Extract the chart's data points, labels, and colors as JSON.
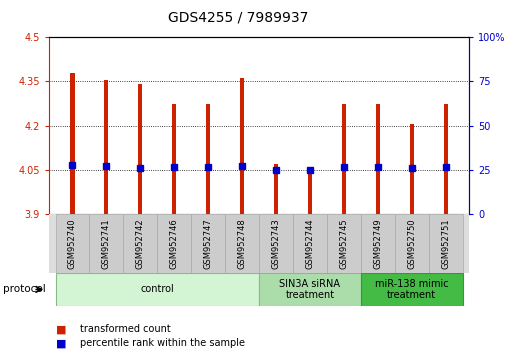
{
  "title": "GDS4255 / 7989937",
  "samples": [
    "GSM952740",
    "GSM952741",
    "GSM952742",
    "GSM952746",
    "GSM952747",
    "GSM952748",
    "GSM952743",
    "GSM952744",
    "GSM952745",
    "GSM952749",
    "GSM952750",
    "GSM952751"
  ],
  "bar_tops": [
    4.38,
    4.355,
    4.34,
    4.275,
    4.275,
    4.36,
    4.07,
    4.06,
    4.275,
    4.275,
    4.205,
    4.275
  ],
  "bar_bottom": 3.9,
  "percentile_left_values": [
    4.067,
    4.062,
    4.057,
    4.06,
    4.06,
    4.062,
    4.051,
    4.051,
    4.06,
    4.06,
    4.057,
    4.06
  ],
  "ylim_left": [
    3.9,
    4.5
  ],
  "ylim_right": [
    0,
    100
  ],
  "yticks_left": [
    3.9,
    4.05,
    4.2,
    4.35,
    4.5
  ],
  "ytick_labels_left": [
    "3.9",
    "4.05",
    "4.2",
    "4.35",
    "4.5"
  ],
  "yticks_right": [
    0,
    25,
    50,
    75,
    100
  ],
  "ytick_labels_right": [
    "0",
    "25",
    "50",
    "75",
    "100%"
  ],
  "bar_color": "#cc2200",
  "dot_color": "#0000cc",
  "grid_dotted_at": [
    4.05,
    4.2,
    4.35
  ],
  "protocol_groups": [
    {
      "label": "control",
      "start": 0,
      "end": 5,
      "color": "#d4f5d4",
      "edge_color": "#88bb88"
    },
    {
      "label": "SIN3A siRNA\ntreatment",
      "start": 6,
      "end": 8,
      "color": "#aaddaa",
      "edge_color": "#88bb88"
    },
    {
      "label": "miR-138 mimic\ntreatment",
      "start": 9,
      "end": 11,
      "color": "#44bb44",
      "edge_color": "#339933"
    }
  ],
  "protocol_label": "protocol",
  "legend_items": [
    {
      "label": "transformed count",
      "color": "#cc2200"
    },
    {
      "label": "percentile rank within the sample",
      "color": "#0000cc"
    }
  ],
  "bg_color": "#ffffff",
  "bar_width": 0.12,
  "tick_label_fontsize": 7,
  "title_fontsize": 10,
  "sample_fontsize": 6,
  "label_box_color": "#cccccc",
  "label_box_edge": "#aaaaaa"
}
